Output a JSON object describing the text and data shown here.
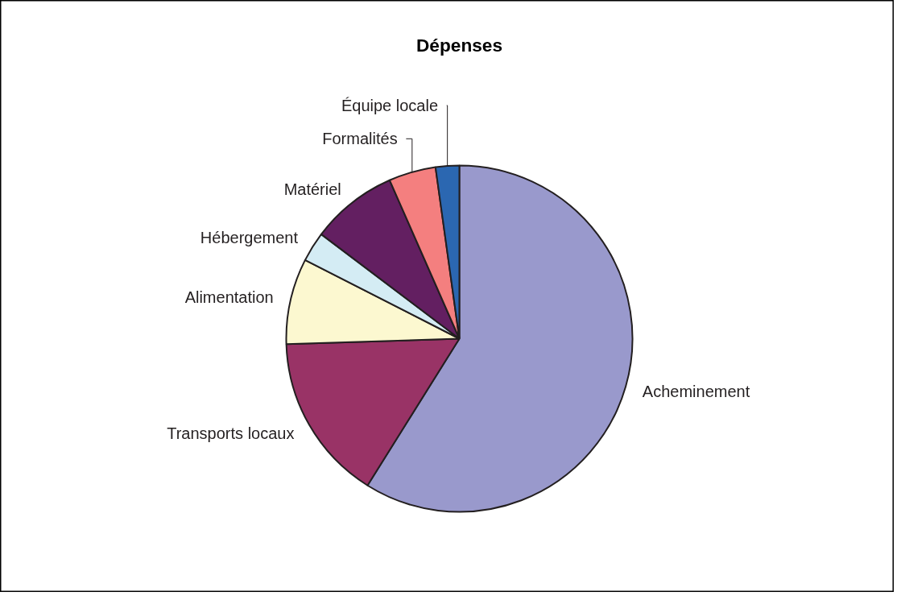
{
  "chart_data": {
    "type": "pie",
    "title": "Dépenses",
    "categories": [
      "Acheminement",
      "Transports locaux",
      "Alimentation",
      "Hébergement",
      "Matériel",
      "Formalités",
      "Équipe locale"
    ],
    "values": [
      58.9,
      15.6,
      8.0,
      2.8,
      8.1,
      4.4,
      2.2
    ],
    "colors": [
      "#9999cc",
      "#993366",
      "#fcf8d0",
      "#d4ecf4",
      "#631f61",
      "#f47f7f",
      "#2b67b1"
    ],
    "legend": false
  }
}
